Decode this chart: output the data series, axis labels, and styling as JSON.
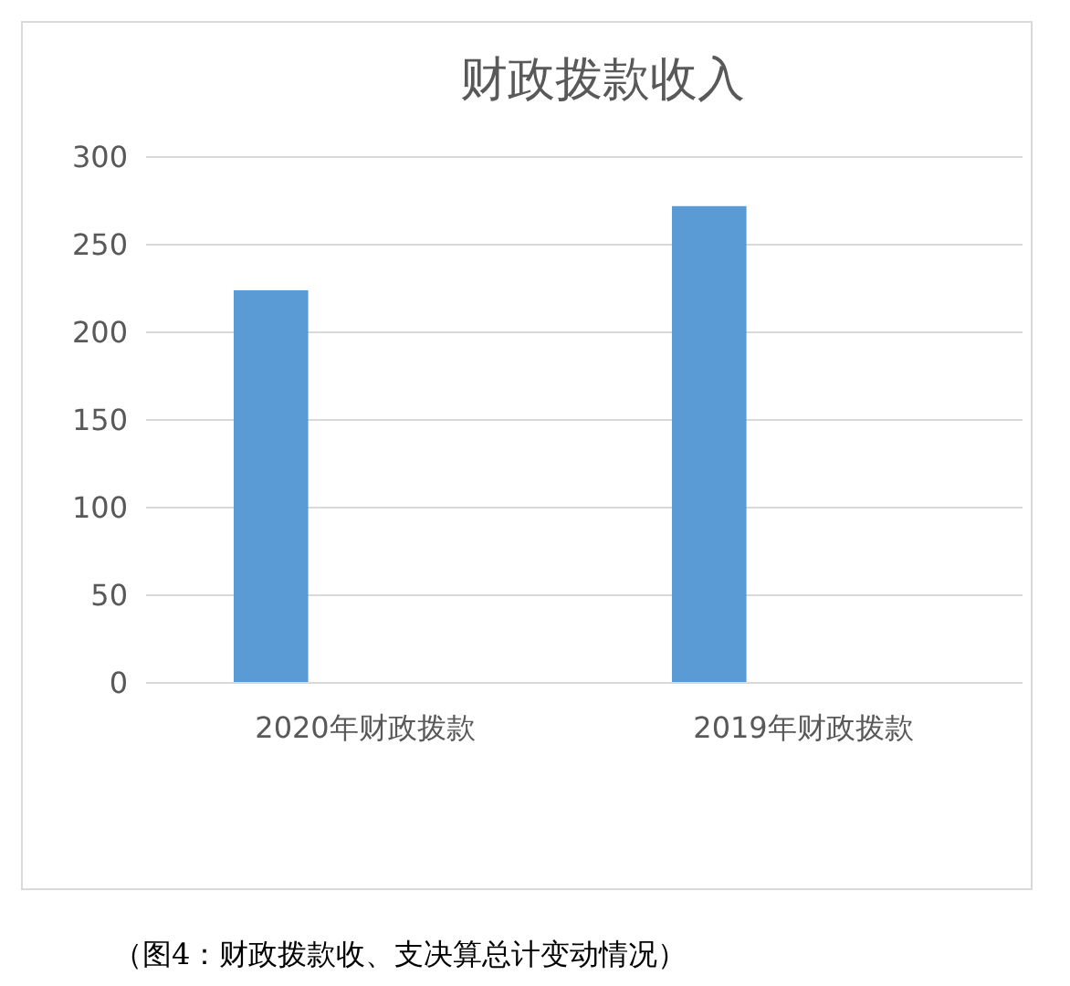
{
  "chart_data": {
    "type": "bar",
    "title": "财政拨款收入",
    "categories": [
      "2020年财政拨款",
      "2019年财政拨款"
    ],
    "values": [
      224,
      272
    ],
    "color": "#5b9bd5",
    "ylim": [
      0,
      300
    ],
    "yticks": [
      0,
      50,
      100,
      150,
      200,
      250,
      300
    ],
    "grid": "y",
    "annotations": [
      "（图4：财政拨款收、支决算总计变动情况）"
    ]
  }
}
